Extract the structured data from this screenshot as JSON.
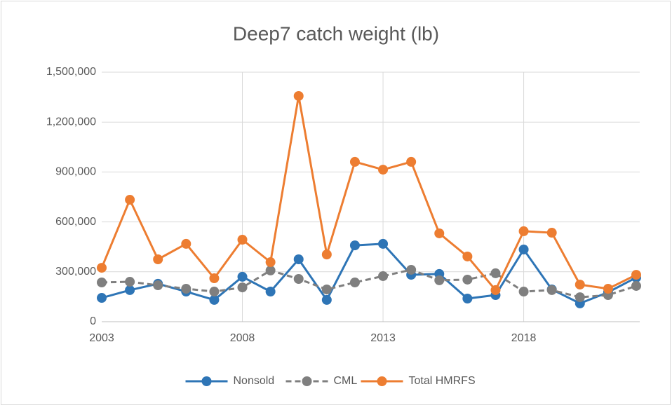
{
  "chart_data": {
    "type": "line",
    "title": "Deep7 catch weight (lb)",
    "x": [
      2003,
      2004,
      2005,
      2006,
      2007,
      2008,
      2009,
      2010,
      2011,
      2012,
      2013,
      2014,
      2015,
      2016,
      2017,
      2018,
      2019,
      2020,
      2021,
      2022
    ],
    "series": [
      {
        "name": "Nonsold",
        "color": "#2e75b6",
        "dash": false,
        "values": [
          143000,
          190000,
          228000,
          181000,
          131000,
          270000,
          181000,
          375000,
          131000,
          459000,
          468000,
          282000,
          287000,
          139000,
          160000,
          434000,
          194000,
          110000,
          177000,
          265000
        ]
      },
      {
        "name": "CML",
        "color": "#7f7f7f",
        "dash": true,
        "values": [
          236000,
          240000,
          219000,
          198000,
          181000,
          206000,
          308000,
          257000,
          194000,
          236000,
          274000,
          312000,
          249000,
          253000,
          291000,
          181000,
          190000,
          147000,
          160000,
          215000
        ]
      },
      {
        "name": "Total HMRFS",
        "color": "#ed7d31",
        "dash": false,
        "values": [
          324000,
          733000,
          375000,
          468000,
          261000,
          493000,
          358000,
          1357000,
          404000,
          961000,
          914000,
          961000,
          531000,
          392000,
          190000,
          544000,
          535000,
          223000,
          198000,
          282000
        ]
      }
    ],
    "xlim": [
      2003,
      2022
    ],
    "xticks": [
      2003,
      2008,
      2013,
      2018
    ],
    "ylim": [
      0,
      1500000
    ],
    "yticks": [
      0,
      {
        "value": 300000,
        "label": "300,000"
      },
      {
        "value": 600000,
        "label": "600,000"
      },
      {
        "value": 900000,
        "label": "900,000"
      },
      {
        "value": 1200000,
        "label": "1,200,000"
      },
      {
        "value": 1500000,
        "label": "1,500,000"
      }
    ],
    "grid": true,
    "legend": "bottom"
  }
}
